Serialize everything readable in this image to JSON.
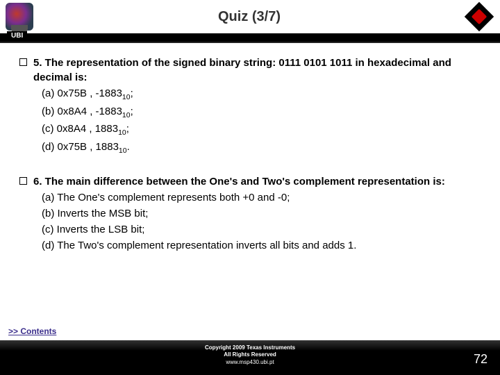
{
  "header": {
    "title": "Quiz (3/7)",
    "ubi_label": "UBI"
  },
  "questions": [
    {
      "stem": "5. The representation of the signed binary string: 0111 0101 1011 in hexadecimal and decimal is:",
      "options": [
        {
          "label": "(a)",
          "text_pre": "0x75B , -1883",
          "sub": "10",
          "text_post": ";"
        },
        {
          "label": "(b)",
          "text_pre": "0x8A4 , -1883",
          "sub": "10",
          "text_post": ";"
        },
        {
          "label": "(c)",
          "text_pre": "0x8A4 , 1883",
          "sub": "10",
          "text_post": ";"
        },
        {
          "label": "(d)",
          "text_pre": "0x75B , 1883",
          "sub": "10",
          "text_post": "."
        }
      ]
    },
    {
      "stem": "6. The main difference between the One's and Two's complement representation is:",
      "options": [
        {
          "label": "(a)",
          "text_pre": "The One's complement represents both +0 and -0;",
          "sub": "",
          "text_post": ""
        },
        {
          "label": "(b)",
          "text_pre": "Inverts the MSB bit;",
          "sub": "",
          "text_post": ""
        },
        {
          "label": "(c)",
          "text_pre": "Inverts the LSB bit;",
          "sub": "",
          "text_post": ""
        },
        {
          "label": "(d)",
          "text_pre": "The Two's complement representation inverts all bits and adds 1.",
          "sub": "",
          "text_post": ""
        }
      ]
    }
  ],
  "footer": {
    "contents_link": ">> Contents",
    "copyright_line1": "Copyright  2009 Texas Instruments",
    "copyright_line2": "All Rights Reserved",
    "url": "www.msp430.ubi.pt",
    "page_number": "72"
  },
  "colors": {
    "text": "#000000",
    "link": "#3b2e8c",
    "footer_bg": "#000000",
    "footer_text": "#ffffff"
  }
}
